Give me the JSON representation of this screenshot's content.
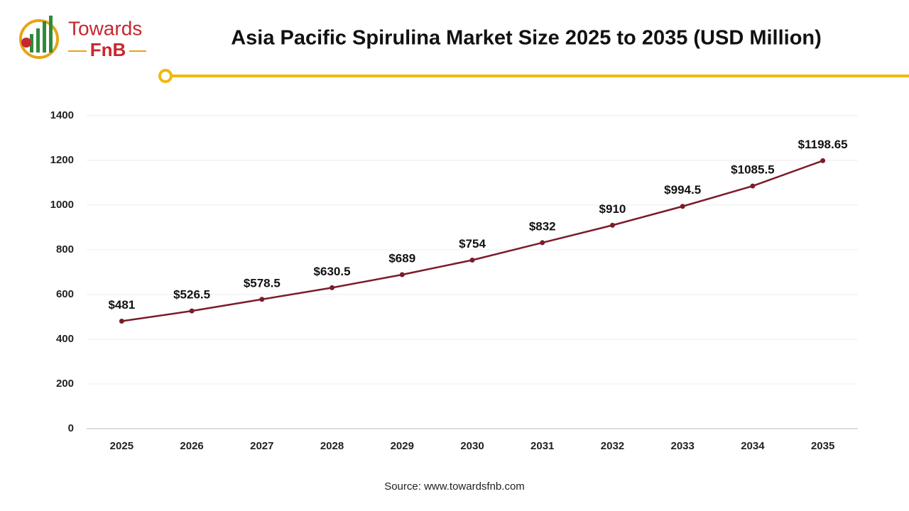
{
  "logo": {
    "line1": "Towards",
    "line2": "FnB"
  },
  "chart_data": {
    "type": "line",
    "title": "Asia Pacific Spirulina Market Size 2025 to 2035 (USD Million)",
    "categories": [
      "2025",
      "2026",
      "2027",
      "2028",
      "2029",
      "2030",
      "2031",
      "2032",
      "2033",
      "2034",
      "2035"
    ],
    "series": [
      {
        "name": "Market Size",
        "color": "#7b1c28",
        "values": [
          481,
          526.5,
          578.5,
          630.5,
          689,
          754,
          832,
          910,
          994.5,
          1085.5,
          1198.65
        ],
        "value_labels": [
          "$481",
          "$526.5",
          "$578.5",
          "$630.5",
          "$689",
          "$754",
          "$832",
          "$910",
          "$994.5",
          "$1085.5",
          "$1198.65"
        ]
      }
    ],
    "ylim": [
      0,
      1400
    ],
    "yticks": [
      0,
      200,
      400,
      600,
      800,
      1000,
      1200,
      1400
    ],
    "grid": true
  },
  "source": "Source: www.towardsfnb.com"
}
